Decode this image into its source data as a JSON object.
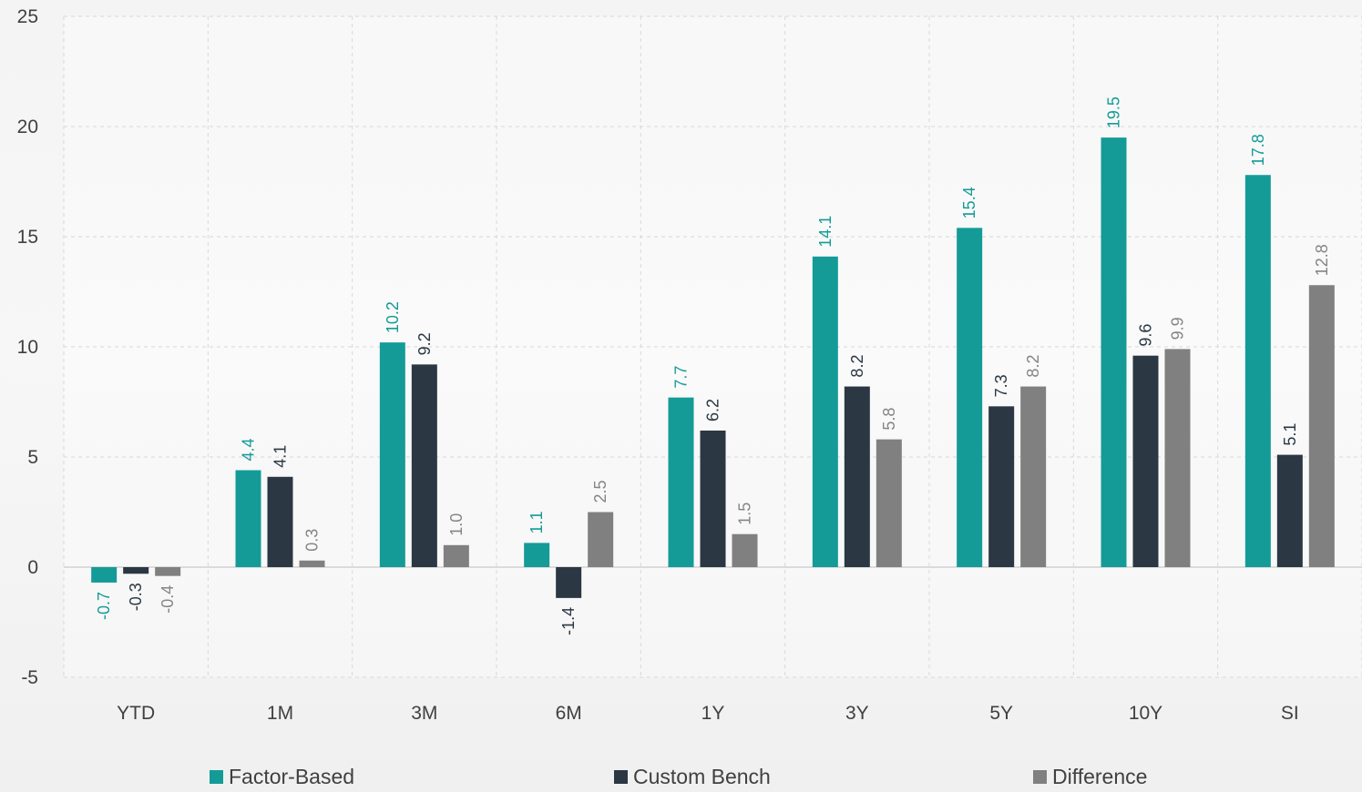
{
  "chart_data": {
    "type": "bar",
    "title": "",
    "xlabel": "",
    "ylabel": "",
    "categories": [
      "YTD",
      "1M",
      "3M",
      "6M",
      "1Y",
      "3Y",
      "5Y",
      "10Y",
      "SI"
    ],
    "ylim": [
      -5,
      25
    ],
    "yticks": [
      "-5",
      "0",
      "5",
      "10",
      "15",
      "20",
      "25"
    ],
    "grid": true,
    "legend_position": "bottom",
    "series": [
      {
        "name": "Factor-Based",
        "color": "#149b97",
        "values": [
          -0.7,
          4.4,
          10.2,
          1.1,
          7.7,
          14.1,
          15.4,
          19.5,
          17.8
        ],
        "labels": [
          "-0.7",
          "4.4",
          "10.2",
          "1.1",
          "7.7",
          "14.1",
          "15.4",
          "19.5",
          "17.8"
        ]
      },
      {
        "name": "Custom Bench",
        "color": "#2b3743",
        "values": [
          -0.3,
          4.1,
          9.2,
          -1.4,
          6.2,
          8.2,
          7.3,
          9.6,
          5.1
        ],
        "labels": [
          "-0.3",
          "4.1",
          "9.2",
          "-1.4",
          "6.2",
          "8.2",
          "7.3",
          "9.6",
          "5.1"
        ]
      },
      {
        "name": "Difference",
        "color": "#808080",
        "values": [
          -0.4,
          0.3,
          1.0,
          2.5,
          1.5,
          5.8,
          8.2,
          9.9,
          12.8
        ],
        "labels": [
          "-0.4",
          "0.3",
          "1.0",
          "2.5",
          "1.5",
          "5.8",
          "8.2",
          "9.9",
          "12.8"
        ]
      }
    ]
  }
}
